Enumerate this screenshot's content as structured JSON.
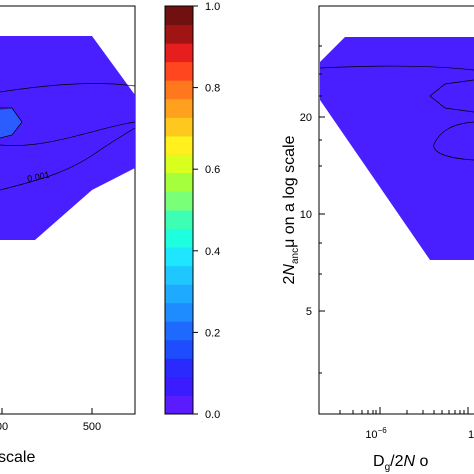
{
  "chart_data": [
    {
      "type": "contour",
      "panel": "left",
      "title": "",
      "xlabel": "scale",
      "ylabel": "",
      "x_ticks": [
        "500"
      ],
      "partial_x_ticks": [
        "00"
      ],
      "y_ticks": [],
      "contour_labels": [
        "0.001"
      ],
      "fill_color": "#4a1fff",
      "inner_region_color": "#2b5cff"
    },
    {
      "type": "colorbar",
      "ticks": [
        "1.0",
        "0.8",
        "0.6",
        "0.4",
        "0.2",
        "0.0"
      ],
      "range": [
        0.0,
        1.0
      ],
      "levels": 20,
      "colors": [
        "#5a1cff",
        "#3a1cff",
        "#2a2aff",
        "#1e4cff",
        "#1e6aff",
        "#1e8cff",
        "#1eaaff",
        "#1ec8ff",
        "#1ee6ff",
        "#1effe0",
        "#3cffb4",
        "#7aff78",
        "#a6ff3c",
        "#d8ff1e",
        "#fff01e",
        "#ffc81e",
        "#ffa01e",
        "#ff781e",
        "#ff461e",
        "#e61e1e",
        "#a01414",
        "#701010"
      ]
    },
    {
      "type": "contour",
      "panel": "right",
      "title": "",
      "ylabel_pre": "2",
      "ylabel_n": "N",
      "ylabel_sub": "anc",
      "ylabel_post": "μ on a log scale",
      "xlabel_pre": "D",
      "xlabel_sub": "g",
      "xlabel_post": "/2",
      "xlabel_n": "N",
      "xlabel_tail": " o",
      "y_ticks": [
        "20",
        "10",
        "5"
      ],
      "x_ticks": [
        "10",
        "1"
      ],
      "x_tick_exp": "−6",
      "fill_color": "#4a1fff"
    }
  ]
}
